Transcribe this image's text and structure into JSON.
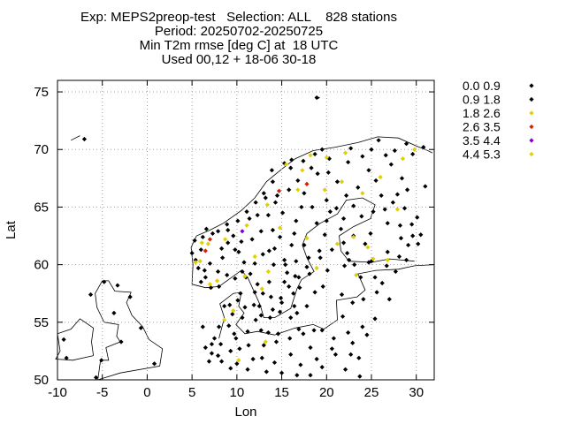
{
  "title": {
    "line1": "Exp: MEPS2preop-test   Selection: ALL    828 stations",
    "line2": "Period: 20250702-20250725",
    "line3": "Min T2m rmse [deg C] at  18 UTC",
    "line4": "Used 00,12 + 18-06 30-18"
  },
  "chart_data": {
    "type": "scatter",
    "xlabel": "Lon",
    "ylabel": "Lat",
    "xlim": [
      -10,
      32
    ],
    "ylim": [
      50,
      76
    ],
    "xticks": [
      -10,
      -5,
      0,
      5,
      10,
      15,
      20,
      25,
      30
    ],
    "yticks": [
      50,
      55,
      60,
      65,
      70,
      75
    ],
    "grid": true,
    "legend_position": "right",
    "background_map": "coastlines",
    "series": [
      {
        "name": "0.0 0.9",
        "color": "#000000",
        "points": [
          [
            6.2,
            62.4
          ],
          [
            8.9,
            63.5
          ],
          [
            10.8,
            60.2
          ],
          [
            12.5,
            56.4
          ],
          [
            15.6,
            59.3
          ],
          [
            18.1,
            59.2
          ],
          [
            20.4,
            64.6
          ],
          [
            24.3,
            61.8
          ],
          [
            27.9,
            66.1
          ],
          [
            26.6,
            69.5
          ],
          [
            22.9,
            56.7
          ],
          [
            9.9,
            53.6
          ],
          [
            7.2,
            52.3
          ],
          [
            11.8,
            51.8
          ],
          [
            13.9,
            68.2
          ],
          [
            22.3,
            61.0
          ]
        ]
      },
      {
        "name": "0.9 1.8",
        "color": "#000000",
        "points": [
          [
            8.0,
            58.1
          ],
          [
            9.5,
            55.7
          ],
          [
            10.4,
            57.5
          ],
          [
            12.0,
            57.6
          ],
          [
            12.7,
            55.6
          ],
          [
            13.6,
            58.5
          ],
          [
            14.2,
            61.4
          ],
          [
            16.4,
            62.7
          ],
          [
            17.8,
            59.8
          ],
          [
            19.3,
            60.6
          ],
          [
            21.6,
            63.1
          ],
          [
            23.0,
            65.1
          ],
          [
            25.5,
            67.3
          ],
          [
            28.7,
            64.9
          ],
          [
            29.6,
            62.5
          ],
          [
            26.8,
            61.1
          ],
          [
            24.7,
            60.2
          ],
          [
            22.5,
            60.4
          ],
          [
            21.1,
            64.9
          ],
          [
            19.0,
            67.9
          ],
          [
            16.0,
            68.4
          ],
          [
            13.2,
            65.8
          ],
          [
            11.4,
            64.0
          ],
          [
            9.6,
            62.5
          ],
          [
            7.3,
            62.7
          ],
          [
            6.0,
            61.3
          ],
          [
            5.4,
            60.4
          ],
          [
            6.5,
            58.9
          ],
          [
            8.6,
            56.4
          ],
          [
            11.2,
            54.2
          ],
          [
            13.5,
            54.1
          ],
          [
            14.4,
            53.3
          ],
          [
            16.9,
            54.4
          ],
          [
            18.6,
            54.3
          ],
          [
            21.0,
            52.2
          ],
          [
            23.6,
            51.9
          ],
          [
            19.5,
            51.1
          ],
          [
            17.1,
            51.3
          ],
          [
            15.0,
            50.6
          ],
          [
            12.8,
            51.9
          ],
          [
            10.3,
            52.7
          ],
          [
            8.2,
            53.1
          ],
          [
            6.9,
            51.6
          ],
          [
            25.4,
            55.3
          ],
          [
            24.1,
            57.0
          ],
          [
            21.7,
            57.4
          ],
          [
            23.8,
            58.9
          ],
          [
            26.2,
            58.4
          ],
          [
            27.7,
            59.4
          ],
          [
            29.1,
            61.7
          ],
          [
            30.5,
            62.6
          ],
          [
            28.2,
            63.4
          ],
          [
            29.0,
            66.5
          ],
          [
            27.2,
            68.7
          ],
          [
            24.7,
            68.2
          ],
          [
            22.4,
            68.9
          ],
          [
            20.3,
            69.2
          ],
          [
            18.7,
            69.6
          ],
          [
            16.1,
            69.1
          ],
          [
            14.5,
            66.0
          ],
          [
            12.3,
            64.3
          ],
          [
            10.5,
            62.0
          ],
          [
            12.9,
            60.9
          ],
          [
            15.3,
            60.4
          ],
          [
            17.5,
            61.7
          ],
          [
            18.9,
            63.6
          ],
          [
            20.0,
            65.6
          ],
          [
            17.2,
            65.0
          ],
          [
            15.1,
            64.5
          ],
          [
            14.0,
            63.0
          ],
          [
            11.7,
            62.2
          ],
          [
            9.8,
            61.3
          ],
          [
            8.4,
            60.6
          ],
          [
            7.0,
            60.1
          ],
          [
            6.4,
            59.5
          ],
          [
            8.9,
            59.1
          ],
          [
            9.8,
            58.8
          ],
          [
            11.0,
            58.9
          ],
          [
            12.3,
            58.3
          ],
          [
            13.8,
            57.2
          ],
          [
            15.0,
            56.7
          ],
          [
            16.3,
            57.5
          ],
          [
            16.5,
            59.0
          ],
          [
            17.0,
            58.0
          ],
          [
            18.7,
            57.6
          ],
          [
            14.8,
            55.9
          ],
          [
            12.1,
            55.2
          ],
          [
            10.6,
            55.4
          ],
          [
            9.1,
            54.7
          ],
          [
            8.0,
            54.6
          ],
          [
            7.5,
            53.6
          ],
          [
            9.3,
            52.5
          ],
          [
            11.2,
            50.9
          ],
          [
            13.3,
            50.7
          ],
          [
            16.0,
            52.2
          ],
          [
            18.2,
            52.8
          ],
          [
            20.8,
            53.6
          ],
          [
            22.4,
            54.1
          ],
          [
            21.8,
            55.5
          ],
          [
            24.0,
            54.6
          ],
          [
            22.7,
            52.2
          ],
          [
            25.6,
            57.6
          ],
          [
            27.0,
            57.0
          ],
          [
            28.1,
            60.7
          ],
          [
            30.2,
            61.8
          ],
          [
            31.0,
            66.8
          ],
          [
            26.1,
            66.0
          ],
          [
            23.5,
            66.7
          ],
          [
            21.9,
            64.0
          ],
          [
            19.8,
            62.6
          ],
          [
            20.6,
            61.3
          ],
          [
            21.9,
            61.9
          ],
          [
            23.0,
            62.5
          ],
          [
            24.9,
            62.7
          ],
          [
            26.8,
            63.6
          ],
          [
            28.3,
            62.3
          ],
          [
            28.9,
            60.4
          ],
          [
            26.7,
            59.9
          ],
          [
            25.4,
            58.9
          ],
          [
            25.0,
            60.3
          ],
          [
            23.1,
            60.0
          ],
          [
            22.0,
            59.9
          ],
          [
            20.1,
            59.5
          ],
          [
            19.6,
            58.1
          ],
          [
            17.8,
            56.4
          ],
          [
            16.0,
            55.4
          ],
          [
            0.8,
            51.4
          ],
          [
            -2.9,
            53.3
          ],
          [
            -5.7,
            50.2
          ],
          [
            -9.0,
            51.9
          ],
          [
            -3.3,
            58.2
          ],
          [
            -1.9,
            57.2
          ],
          [
            -4.8,
            58.5
          ],
          [
            -9.3,
            53.5
          ],
          [
            -6.3,
            57.4
          ],
          [
            18.9,
            74.5
          ],
          [
            -5.1,
            51.7
          ],
          [
            -3.7,
            55.8
          ],
          [
            -0.7,
            54.5
          ],
          [
            -7.0,
            70.9
          ],
          [
            9.2,
            56.5
          ],
          [
            10.1,
            56.9
          ],
          [
            10.9,
            56.3
          ],
          [
            12.7,
            54.3
          ],
          [
            13.7,
            55.4
          ],
          [
            13.0,
            53.0
          ],
          [
            14.6,
            54.0
          ],
          [
            9.7,
            54.0
          ],
          [
            11.3,
            53.0
          ],
          [
            10.0,
            51.4
          ],
          [
            14.9,
            57.1
          ],
          [
            15.8,
            58.1
          ],
          [
            16.6,
            60.3
          ],
          [
            18.0,
            60.6
          ],
          [
            19.2,
            61.2
          ],
          [
            20.0,
            63.8
          ],
          [
            18.4,
            65.0
          ],
          [
            17.5,
            66.2
          ],
          [
            16.8,
            67.3
          ],
          [
            18.3,
            68.4
          ],
          [
            20.2,
            68.0
          ],
          [
            21.2,
            67.2
          ],
          [
            22.2,
            66.0
          ],
          [
            23.9,
            64.2
          ],
          [
            25.2,
            64.6
          ],
          [
            26.5,
            64.8
          ],
          [
            27.4,
            65.4
          ],
          [
            29.5,
            63.5
          ],
          [
            30.1,
            64.1
          ],
          [
            28.4,
            67.5
          ],
          [
            27.6,
            69.9
          ],
          [
            25.0,
            70.0
          ],
          [
            24.0,
            69.4
          ],
          [
            29.6,
            69.6
          ],
          [
            30.8,
            70.2
          ],
          [
            28.9,
            70.5
          ],
          [
            22.7,
            70.1
          ],
          [
            25.8,
            70.8
          ],
          [
            19.5,
            70.0
          ],
          [
            17.4,
            69.0
          ],
          [
            15.3,
            68.8
          ],
          [
            14.0,
            67.2
          ],
          [
            13.0,
            66.2
          ],
          [
            12.1,
            65.4
          ],
          [
            11.1,
            64.6
          ],
          [
            10.1,
            63.8
          ],
          [
            9.0,
            63.0
          ],
          [
            7.9,
            62.9
          ],
          [
            6.6,
            63.1
          ],
          [
            5.3,
            62.1
          ],
          [
            5.0,
            61.0
          ],
          [
            5.7,
            59.7
          ],
          [
            6.0,
            58.5
          ],
          [
            7.1,
            58.0
          ],
          [
            7.9,
            59.4
          ],
          [
            8.3,
            61.4
          ],
          [
            9.0,
            61.9
          ],
          [
            10.2,
            61.1
          ],
          [
            10.6,
            59.4
          ],
          [
            11.5,
            59.2
          ],
          [
            12.0,
            60.1
          ],
          [
            12.7,
            62.9
          ],
          [
            13.5,
            64.3
          ],
          [
            14.3,
            65.4
          ],
          [
            15.8,
            66.5
          ],
          [
            16.6,
            63.8
          ],
          [
            16.1,
            61.7
          ],
          [
            14.8,
            62.4
          ],
          [
            13.6,
            61.2
          ],
          [
            14.1,
            60.0
          ],
          [
            15.4,
            60.0
          ],
          [
            16.9,
            58.9
          ],
          [
            15.3,
            58.5
          ],
          [
            12.9,
            57.5
          ],
          [
            11.9,
            56.5
          ],
          [
            14.0,
            56.1
          ],
          [
            16.4,
            56.4
          ],
          [
            16.7,
            55.8
          ],
          [
            17.4,
            54.0
          ],
          [
            15.9,
            53.6
          ],
          [
            19.5,
            54.3
          ],
          [
            20.6,
            52.7
          ],
          [
            18.9,
            51.8
          ],
          [
            22.9,
            53.2
          ],
          [
            24.5,
            53.9
          ],
          [
            22.1,
            50.9
          ],
          [
            23.7,
            50.3
          ],
          [
            18.2,
            50.4
          ],
          [
            16.7,
            50.4
          ],
          [
            14.2,
            51.5
          ],
          [
            9.3,
            51.0
          ],
          [
            8.3,
            51.6
          ],
          [
            7.9,
            52.1
          ],
          [
            6.5,
            52.8
          ],
          [
            7.2,
            53.1
          ],
          [
            6.2,
            54.6
          ]
        ]
      },
      {
        "name": "1.8 2.6",
        "color": "#e0d000",
        "points": [
          [
            5.9,
            60.3
          ],
          [
            7.8,
            58.6
          ],
          [
            9.6,
            56.0
          ],
          [
            10.9,
            59.0
          ],
          [
            12.0,
            60.7
          ],
          [
            13.5,
            59.4
          ],
          [
            14.8,
            63.2
          ],
          [
            16.8,
            66.5
          ],
          [
            15.5,
            68.7
          ],
          [
            18.2,
            69.5
          ],
          [
            20.0,
            69.3
          ],
          [
            22.1,
            69.7
          ],
          [
            24.0,
            66.2
          ],
          [
            26.0,
            67.6
          ],
          [
            28.5,
            69.2
          ],
          [
            29.8,
            70.0
          ],
          [
            26.8,
            60.4
          ],
          [
            27.9,
            64.8
          ],
          [
            25.2,
            60.5
          ],
          [
            23.0,
            62.4
          ],
          [
            21.2,
            61.8
          ],
          [
            17.8,
            62.3
          ],
          [
            18.9,
            59.7
          ],
          [
            13.2,
            53.3
          ],
          [
            12.8,
            57.9
          ],
          [
            8.6,
            55.2
          ],
          [
            10.2,
            51.7
          ],
          [
            6.8,
            61.8
          ],
          [
            8.7,
            62.2
          ],
          [
            11.1,
            63.4
          ],
          [
            13.4,
            65.2
          ],
          [
            17.3,
            68.2
          ],
          [
            19.8,
            66.5
          ],
          [
            21.7,
            67.2
          ],
          [
            24.6,
            61.5
          ],
          [
            23.3,
            59.1
          ],
          [
            7.0,
            58.3
          ]
        ]
      },
      {
        "name": "2.6 3.5",
        "color": "#d62000",
        "points": [
          [
            14.7,
            66.4
          ],
          [
            17.8,
            67.0
          ],
          [
            6.5,
            61.2
          ],
          [
            7.0,
            62.2
          ]
        ]
      },
      {
        "name": "3.5 4.4",
        "color": "#8000d0",
        "points": [
          [
            10.6,
            62.9
          ]
        ]
      },
      {
        "name": "4.4 5.3",
        "color": "#e0d000",
        "points": [
          [
            5.4,
            60.2
          ],
          [
            6.1,
            61.9
          ]
        ]
      }
    ]
  }
}
